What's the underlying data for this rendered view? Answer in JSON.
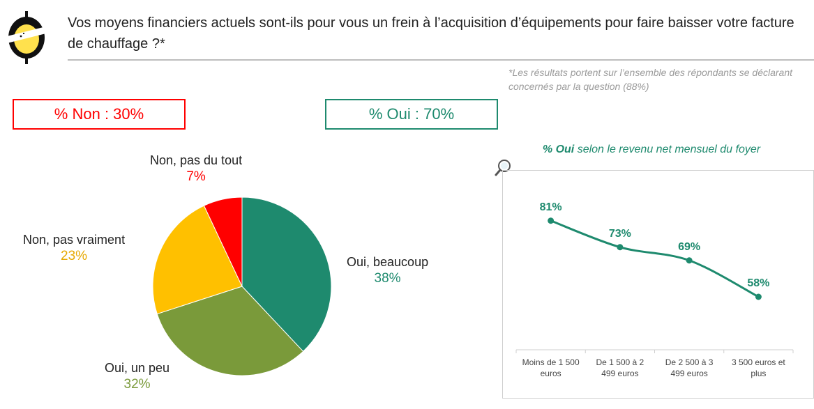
{
  "header": {
    "question": "Vos moyens financiers actuels sont-ils pour vous un frein à l’acquisition d’équipements pour faire baisser votre facture de chauffage ?*",
    "footnote": "*Les résultats portent sur l’ensemble des répondants se déclarant concernés par la question (88%)"
  },
  "summary": {
    "non_label": "% Non : 30%",
    "oui_label": "% Oui : 70%"
  },
  "colors": {
    "red": "#ff0000",
    "teal": "#1e8a6e",
    "olive": "#7a9a3a",
    "yellow": "#ffc000",
    "logo_yellow": "#ffe14d",
    "logo_black": "#111111"
  },
  "chart_data": [
    {
      "type": "pie",
      "slices": [
        {
          "label": "Oui, beaucoup",
          "value": 38,
          "display": "38%",
          "color": "#1e8a6e"
        },
        {
          "label": "Oui, un peu",
          "value": 32,
          "display": "32%",
          "color": "#7a9a3a"
        },
        {
          "label": "Non, pas vraiment",
          "value": 23,
          "display": "23%",
          "color": "#ffc000"
        },
        {
          "label": "Non, pas du tout",
          "value": 7,
          "display": "7%",
          "color": "#ff0000"
        }
      ]
    },
    {
      "type": "line",
      "title_bold": "% Oui",
      "title_rest": " selon le revenu net mensuel du foyer",
      "categories": [
        "Moins de 1 500 euros",
        "De 1 500 à 2 499 euros",
        "De 2 500 à 3 499 euros",
        "3 500 euros et plus"
      ],
      "series": [
        {
          "values": [
            81,
            73,
            69,
            58
          ],
          "labels": [
            "81%",
            "73%",
            "69%",
            "58%"
          ],
          "color": "#1e8a6e"
        }
      ],
      "ylim": [
        50,
        90
      ],
      "grid": false,
      "legend": "none"
    }
  ]
}
